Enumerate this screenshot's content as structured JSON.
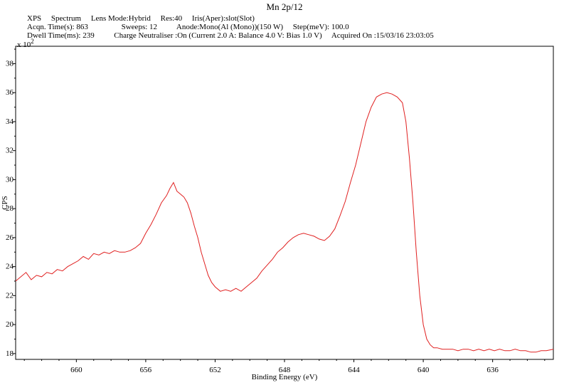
{
  "header": {
    "title": "Mn 2p/12",
    "line1": "XPS     Spectrum     Lens Mode:Hybrid     Res:40     Iris(Aper):slot(Slot)",
    "line2": "Acqn. Time(s): 863                 Sweeps: 12          Anode:Mono(Al (Mono))(150 W)     Step(meV): 100.0",
    "line3": "Dwell Time(ms): 239          Charge Neutraliser :On (Current 2.0 A: Balance 4.0 V: Bias 1.0 V)     Acquired On :15/03/16 23:03:05"
  },
  "colors": {
    "series": "#e02020",
    "axis": "#000000"
  },
  "chart_data": {
    "type": "line",
    "title": "Mn 2p/12",
    "xlabel": "Binding Energy (eV)",
    "ylabel": "CPS",
    "y_multiplier_label": "x 10^2",
    "x_reversed": true,
    "xlim": [
      663.5,
      632.5
    ],
    "ylim": [
      17.6,
      39.2
    ],
    "x_ticks": [
      660,
      656,
      652,
      648,
      644,
      640,
      636
    ],
    "y_ticks": [
      18,
      20,
      22,
      24,
      26,
      28,
      30,
      32,
      34,
      36,
      38
    ],
    "grid": false,
    "series": [
      {
        "x": [
          663.5,
          663.2,
          662.9,
          662.6,
          662.3,
          662.0,
          661.7,
          661.4,
          661.1,
          660.8,
          660.5,
          660.2,
          659.9,
          659.6,
          659.3,
          659.0,
          658.7,
          658.4,
          658.1,
          657.8,
          657.5,
          657.2,
          656.9,
          656.6,
          656.3,
          656.0,
          655.7,
          655.4,
          655.1,
          654.8,
          654.6,
          654.4,
          654.2,
          654.0,
          653.8,
          653.6,
          653.4,
          653.2,
          653.0,
          652.8,
          652.6,
          652.4,
          652.2,
          652.0,
          651.7,
          651.4,
          651.1,
          650.8,
          650.5,
          650.2,
          649.9,
          649.6,
          649.3,
          649.0,
          648.7,
          648.4,
          648.1,
          647.8,
          647.5,
          647.2,
          646.9,
          646.6,
          646.3,
          646.0,
          645.7,
          645.4,
          645.1,
          644.8,
          644.5,
          644.2,
          643.9,
          643.6,
          643.3,
          643.0,
          642.7,
          642.4,
          642.1,
          641.8,
          641.5,
          641.2,
          641.0,
          640.8,
          640.6,
          640.4,
          640.2,
          640.0,
          639.8,
          639.6,
          639.4,
          639.2,
          638.9,
          638.6,
          638.3,
          638.0,
          637.7,
          637.4,
          637.1,
          636.8,
          636.5,
          636.2,
          635.9,
          635.6,
          635.3,
          635.0,
          634.7,
          634.4,
          634.1,
          633.8,
          633.5,
          633.2,
          632.9,
          632.5
        ],
        "y": [
          23.0,
          23.3,
          23.6,
          23.1,
          23.4,
          23.3,
          23.6,
          23.5,
          23.8,
          23.7,
          24.0,
          24.2,
          24.4,
          24.7,
          24.5,
          24.9,
          24.8,
          25.0,
          24.9,
          25.1,
          25.0,
          25.0,
          25.1,
          25.3,
          25.6,
          26.3,
          26.9,
          27.6,
          28.4,
          28.9,
          29.4,
          29.8,
          29.2,
          29.0,
          28.8,
          28.4,
          27.7,
          26.8,
          26.0,
          25.0,
          24.2,
          23.4,
          22.9,
          22.6,
          22.3,
          22.4,
          22.3,
          22.5,
          22.3,
          22.6,
          22.9,
          23.2,
          23.7,
          24.1,
          24.5,
          25.0,
          25.3,
          25.7,
          26.0,
          26.2,
          26.3,
          26.2,
          26.1,
          25.9,
          25.8,
          26.1,
          26.6,
          27.5,
          28.5,
          29.8,
          31.0,
          32.5,
          34.0,
          35.0,
          35.7,
          35.9,
          36.0,
          35.9,
          35.7,
          35.3,
          34.0,
          31.5,
          28.5,
          25.0,
          22.0,
          20.0,
          19.0,
          18.6,
          18.4,
          18.4,
          18.3,
          18.3,
          18.3,
          18.2,
          18.3,
          18.3,
          18.2,
          18.3,
          18.2,
          18.3,
          18.2,
          18.3,
          18.2,
          18.2,
          18.3,
          18.2,
          18.2,
          18.1,
          18.1,
          18.2,
          18.2,
          18.3
        ]
      }
    ]
  }
}
